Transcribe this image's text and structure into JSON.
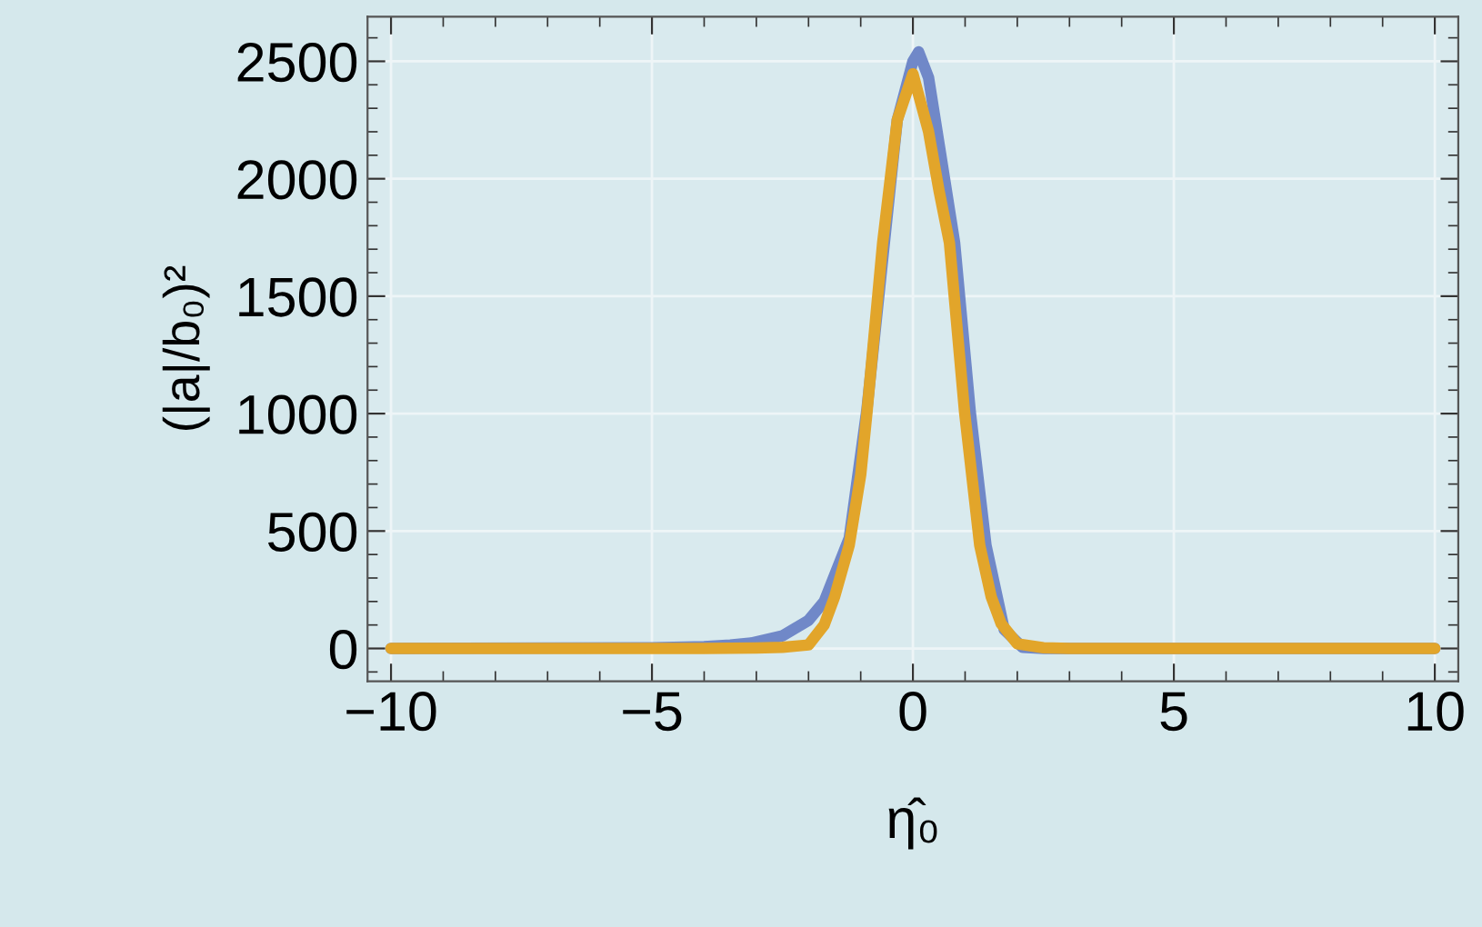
{
  "chart_data": {
    "type": "line",
    "xlabel": "η̂₀",
    "ylabel": "(|a|/b₀)²",
    "xlim": [
      -10.45,
      10.45
    ],
    "ylim": [
      -140,
      2690
    ],
    "xticks": [
      {
        "value": -10,
        "label": "−10"
      },
      {
        "value": -5,
        "label": "−5"
      },
      0,
      5,
      10,
      {
        "value": -9,
        "label": null
      },
      {
        "value": -8,
        "label": null
      },
      {
        "value": -7,
        "label": null
      },
      {
        "value": -6,
        "label": null
      },
      {
        "value": -4,
        "label": null
      },
      {
        "value": -3,
        "label": null
      },
      {
        "value": -2,
        "label": null
      },
      {
        "value": -1,
        "label": null
      },
      {
        "value": 1,
        "label": null
      },
      {
        "value": 2,
        "label": null
      },
      {
        "value": 3,
        "label": null
      },
      {
        "value": 4,
        "label": null
      },
      {
        "value": 6,
        "label": null
      },
      {
        "value": 7,
        "label": null
      },
      {
        "value": 8,
        "label": null
      },
      {
        "value": 9,
        "label": null
      }
    ],
    "yticks": [
      0,
      500,
      1000,
      1500,
      2000,
      2500,
      {
        "value": -100,
        "label": null
      },
      {
        "value": 100,
        "label": null
      },
      {
        "value": 200,
        "label": null
      },
      {
        "value": 300,
        "label": null
      },
      {
        "value": 400,
        "label": null
      },
      {
        "value": 600,
        "label": null
      },
      {
        "value": 700,
        "label": null
      },
      {
        "value": 800,
        "label": null
      },
      {
        "value": 900,
        "label": null
      },
      {
        "value": 1100,
        "label": null
      },
      {
        "value": 1200,
        "label": null
      },
      {
        "value": 1300,
        "label": null
      },
      {
        "value": 1400,
        "label": null
      },
      {
        "value": 1600,
        "label": null
      },
      {
        "value": 1700,
        "label": null
      },
      {
        "value": 1800,
        "label": null
      },
      {
        "value": 1900,
        "label": null
      },
      {
        "value": 2100,
        "label": null
      },
      {
        "value": 2200,
        "label": null
      },
      {
        "value": 2300,
        "label": null
      },
      {
        "value": 2400,
        "label": null
      },
      {
        "value": 2600,
        "label": null
      }
    ],
    "grid": true,
    "marker": "none",
    "line_style": "solid",
    "series": [
      {
        "color": "#7088c8",
        "x": [
          -10,
          -5,
          -4,
          -3.5,
          -3.1,
          -2.5,
          -2.0,
          -1.7,
          -1.22,
          -0.88,
          -0.3,
          0,
          0.11,
          0.3,
          0.5,
          0.8,
          1.1,
          1.4,
          1.75,
          2.1,
          2.5,
          3,
          10
        ],
        "values": [
          0,
          3,
          8,
          15,
          23,
          54,
          120,
          200,
          470,
          1020,
          2250,
          2500,
          2540,
          2430,
          2150,
          1727,
          1006,
          440,
          80,
          5,
          0,
          0,
          0
        ]
      },
      {
        "color": "#e2a52a",
        "x": [
          -10,
          -4,
          -3,
          -2.5,
          -2.0,
          -1.7,
          -1.5,
          -1.22,
          -1.0,
          -0.88,
          -0.58,
          -0.3,
          0,
          0.3,
          0.5,
          0.7,
          0.99,
          1.28,
          1.5,
          1.69,
          2.0,
          2.5,
          3,
          10
        ],
        "values": [
          0,
          0,
          2,
          5,
          15,
          100,
          220,
          440,
          740,
          1006,
          1727,
          2250,
          2447,
          2200,
          1950,
          1727,
          1006,
          440,
          220,
          106,
          20,
          3,
          0,
          0
        ]
      }
    ]
  }
}
